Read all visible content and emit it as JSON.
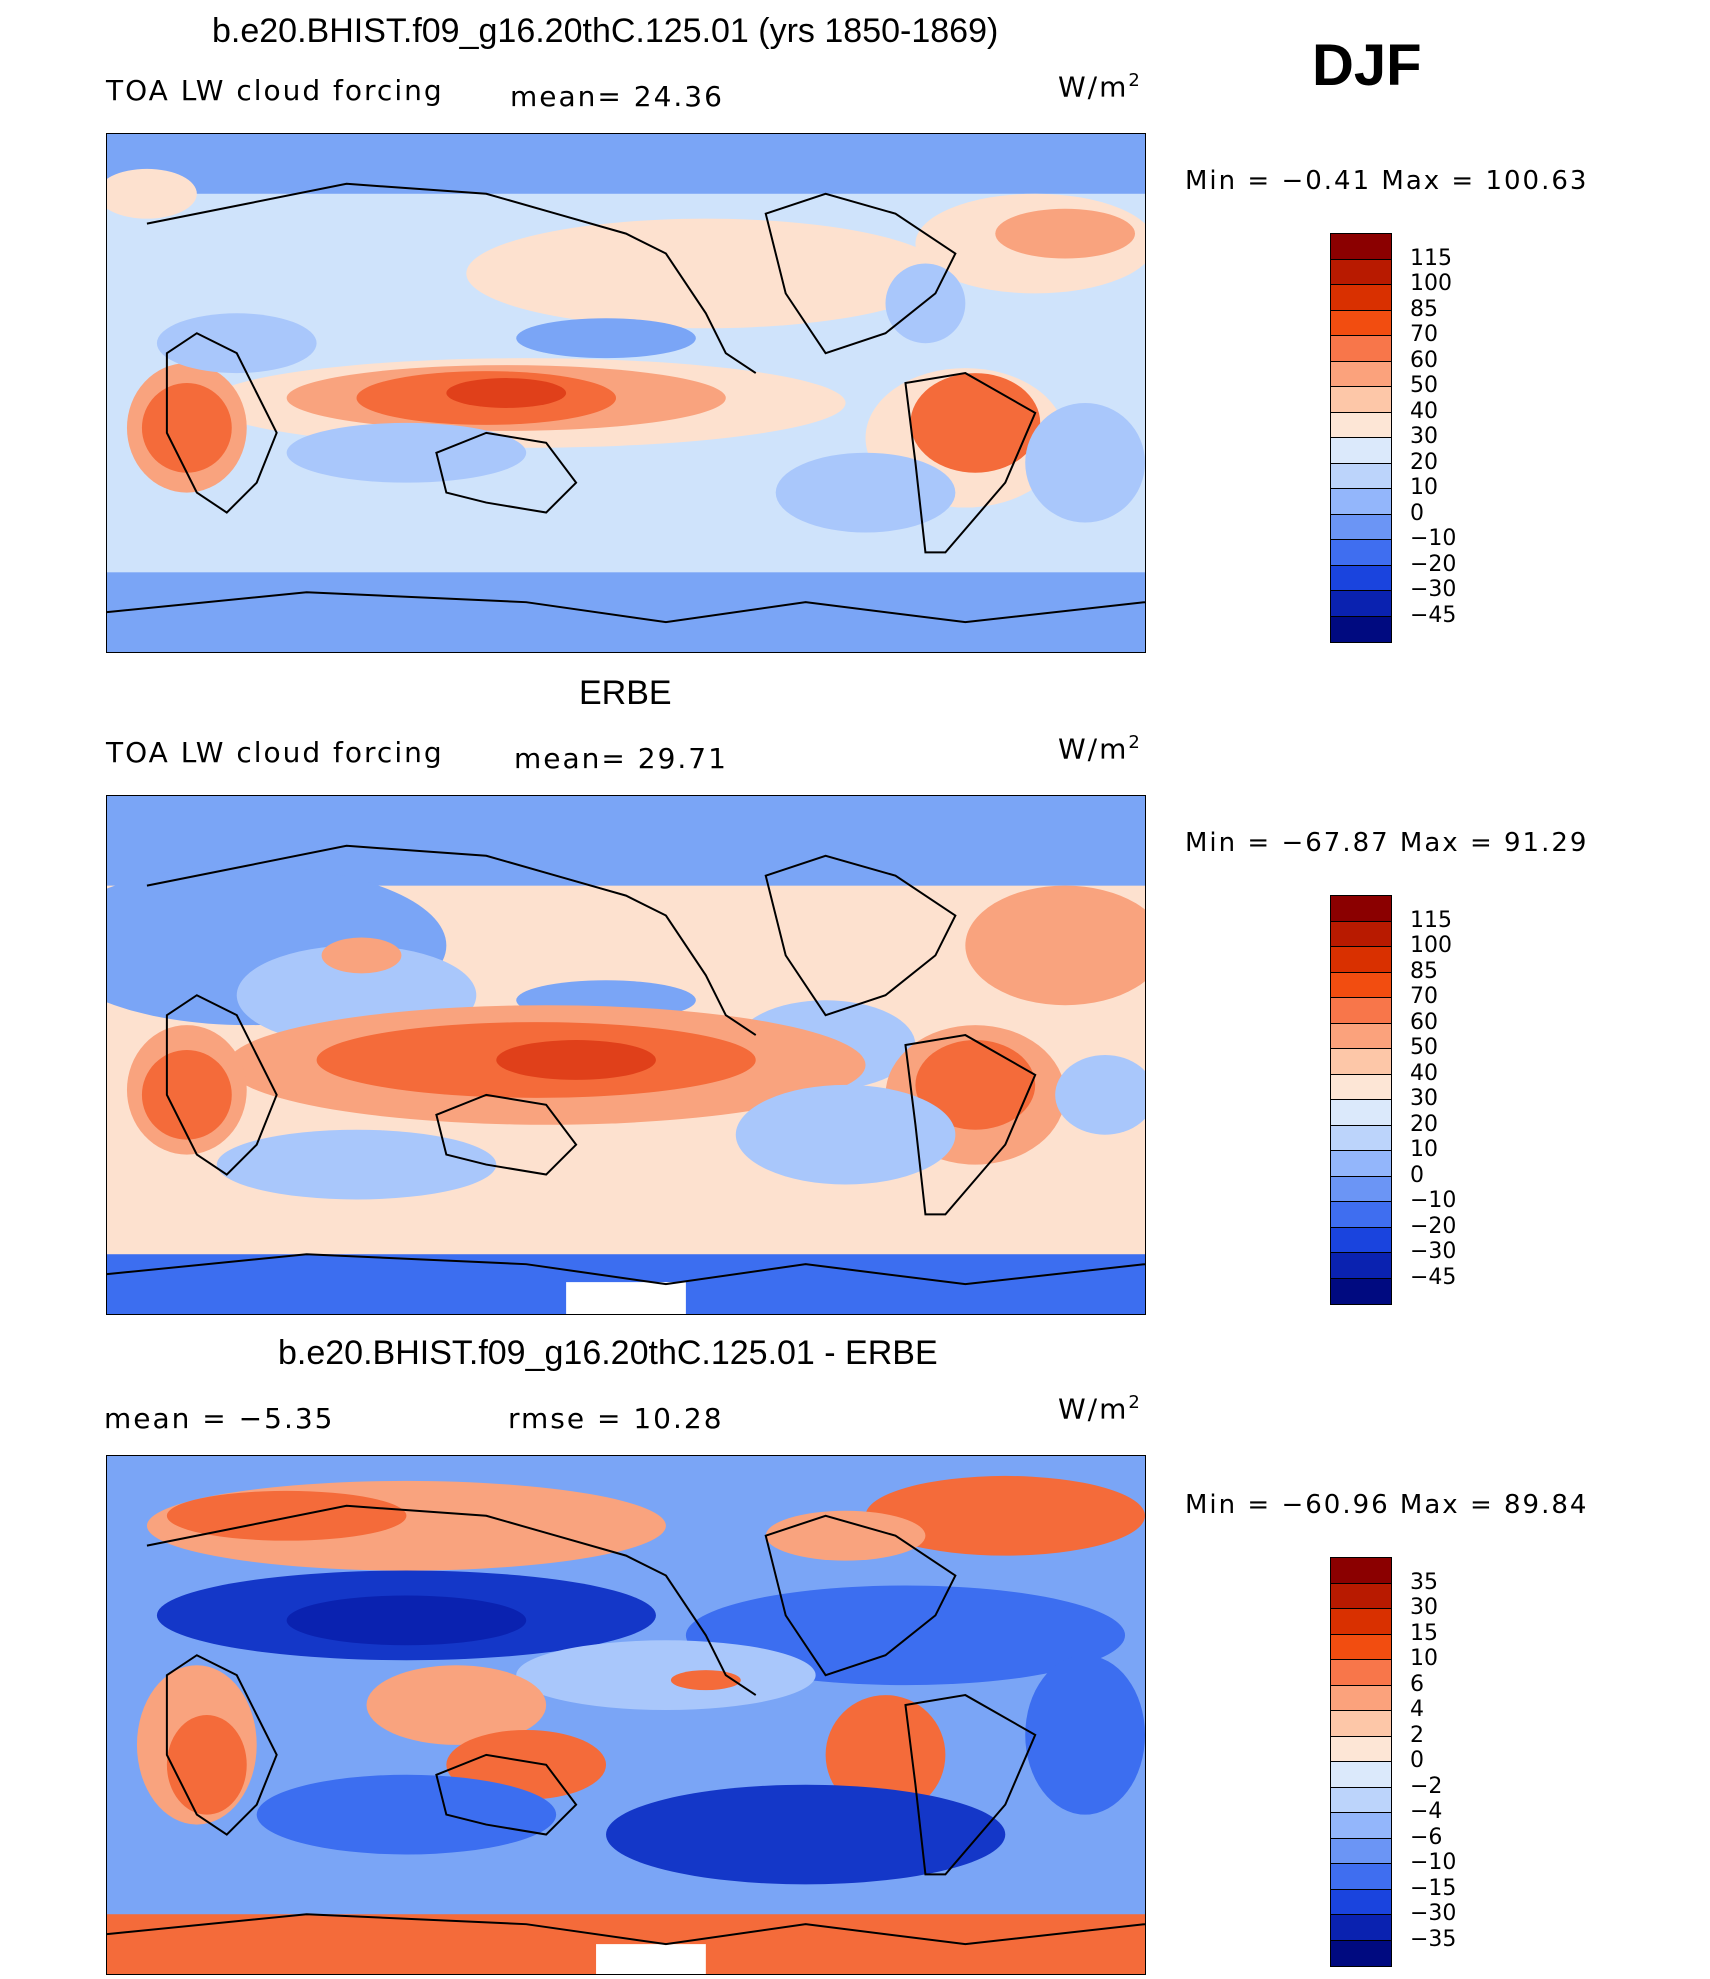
{
  "season": "DJF",
  "units_html": "W/m",
  "units_sup": "2",
  "panels": [
    {
      "title": "b.e20.BHIST.f09_g16.20thC.125.01 (yrs 1850-1869)",
      "left_label": "TOA LW cloud forcing",
      "mid_label": "mean=  24.36",
      "minmax": "Min =   −0.41  Max  =  100.63",
      "colorbar_labels": [
        "115",
        "100",
        "85",
        "70",
        "60",
        "50",
        "40",
        "30",
        "20",
        "10",
        "0",
        "−10",
        "−20",
        "−30",
        "−45"
      ]
    },
    {
      "title": "ERBE",
      "left_label": "TOA LW cloud forcing",
      "mid_label": "mean=  29.71",
      "minmax": "Min  =  −67.87  Max  =   91.29",
      "colorbar_labels": [
        "115",
        "100",
        "85",
        "70",
        "60",
        "50",
        "40",
        "30",
        "20",
        "10",
        "0",
        "−10",
        "−20",
        "−30",
        "−45"
      ]
    },
    {
      "title": "b.e20.BHIST.f09_g16.20thC.125.01 - ERBE",
      "left_label": "mean  =   −5.35",
      "mid_label": "rmse  =   10.28",
      "minmax": "Min  =  −60.96  Max  =   89.84",
      "colorbar_labels": [
        "35",
        "30",
        "15",
        "10",
        "6",
        "4",
        "2",
        "0",
        "−2",
        "−4",
        "−6",
        "−10",
        "−15",
        "−30",
        "−35"
      ]
    }
  ],
  "colorbar_colors": [
    "#8b0000",
    "#b81a00",
    "#d93000",
    "#f24d10",
    "#f8764a",
    "#fba27c",
    "#fdc7a8",
    "#fde6d6",
    "#dbe9fb",
    "#bcd4fb",
    "#93b6fb",
    "#6b95f5",
    "#3f6ef0",
    "#1a44de",
    "#0a22b0",
    "#000a80"
  ],
  "map_colors": {
    "ocean_base": "#cfe3fb",
    "light_blue": "#a9c7fb",
    "mid_blue": "#7aa5f6",
    "blue": "#3c6ef0",
    "deep_blue": "#1437c8",
    "peach": "#fde1cf",
    "salmon": "#f9a37e",
    "orange": "#f46b3a",
    "red": "#e0401a"
  }
}
